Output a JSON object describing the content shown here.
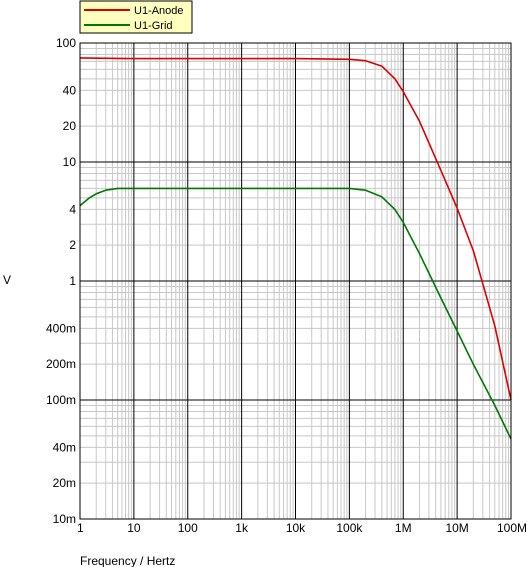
{
  "chart_data": {
    "type": "line",
    "x_scale": "log",
    "y_scale": "log",
    "xlabel": "Frequency / Hertz",
    "ylabel": "V",
    "xlim": [
      1,
      100000000
    ],
    "ylim": [
      0.01,
      100
    ],
    "grid": true,
    "legend_position": "top-left",
    "x_ticks": [
      {
        "value": 1,
        "label": "1"
      },
      {
        "value": 10,
        "label": "10"
      },
      {
        "value": 100,
        "label": "100"
      },
      {
        "value": 1000,
        "label": "1k"
      },
      {
        "value": 10000,
        "label": "10k"
      },
      {
        "value": 100000,
        "label": "100k"
      },
      {
        "value": 1000000,
        "label": "1M"
      },
      {
        "value": 10000000,
        "label": "10M"
      },
      {
        "value": 100000000,
        "label": "100M"
      }
    ],
    "y_ticks_major": [
      {
        "value": 100,
        "label": "100"
      },
      {
        "value": 10,
        "label": "10"
      },
      {
        "value": 1,
        "label": "1"
      },
      {
        "value": 0.1,
        "label": "100m"
      },
      {
        "value": 0.01,
        "label": "10m"
      }
    ],
    "y_ticks_minor_labeled": [
      {
        "value": 40,
        "label": "40"
      },
      {
        "value": 20,
        "label": "20"
      },
      {
        "value": 4,
        "label": "4"
      },
      {
        "value": 2,
        "label": "2"
      },
      {
        "value": 0.4,
        "label": "400m"
      },
      {
        "value": 0.2,
        "label": "200m"
      },
      {
        "value": 0.04,
        "label": "40m"
      },
      {
        "value": 0.02,
        "label": "20m"
      }
    ],
    "series": [
      {
        "name": "U1-Anode",
        "color": "#dd0000",
        "x": [
          1,
          10,
          100,
          1000,
          10000,
          100000,
          200000,
          400000,
          700000,
          1000000,
          2000000,
          5000000,
          10000000,
          20000000,
          50000000,
          100000000
        ],
        "y": [
          75,
          74,
          74,
          74,
          74,
          73,
          71,
          64,
          50,
          39,
          22,
          8.5,
          4.1,
          1.8,
          0.42,
          0.1
        ]
      },
      {
        "name": "U1-Grid",
        "color": "#007700",
        "x": [
          1,
          1.5,
          2,
          3,
          5,
          10,
          100,
          1000,
          10000,
          100000,
          200000,
          400000,
          700000,
          1000000,
          2000000,
          5000000,
          10000000,
          20000000,
          50000000,
          100000000
        ],
        "y": [
          4.3,
          5.0,
          5.4,
          5.8,
          6.0,
          6.0,
          6.0,
          6.0,
          6.0,
          6.0,
          5.8,
          5.1,
          4.0,
          3.1,
          1.7,
          0.72,
          0.38,
          0.2,
          0.09,
          0.047
        ]
      }
    ]
  }
}
